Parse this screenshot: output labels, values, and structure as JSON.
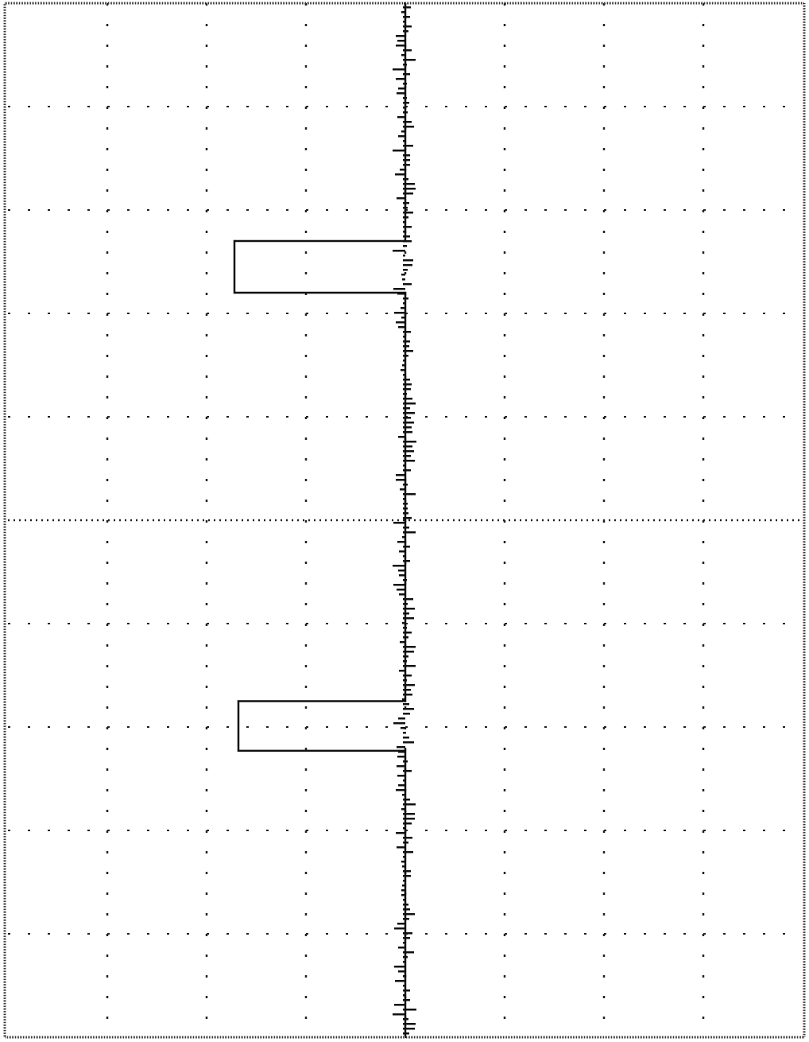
{
  "chart_data": {
    "type": "line",
    "title": "",
    "xlabel": "",
    "ylabel": "",
    "grid": true,
    "orientation": "vertical-trace",
    "divisions": {
      "x": 8,
      "y": 10
    },
    "xlim": [
      -4,
      4
    ],
    "ylim": [
      -5,
      5
    ],
    "series": [
      {
        "name": "",
        "points": [
          [
            0,
            5.0
          ],
          [
            0,
            2.7
          ],
          [
            -1.72,
            2.7
          ],
          [
            -1.72,
            2.2
          ],
          [
            0,
            2.2
          ],
          [
            0,
            -1.75
          ],
          [
            -1.68,
            -1.75
          ],
          [
            -1.68,
            -2.23
          ],
          [
            0,
            -2.23
          ],
          [
            0,
            -5.0
          ]
        ]
      }
    ],
    "colors": {
      "trace": "#111111",
      "grid": "#222222",
      "background": "#ffffff",
      "frame": "#333333"
    }
  }
}
